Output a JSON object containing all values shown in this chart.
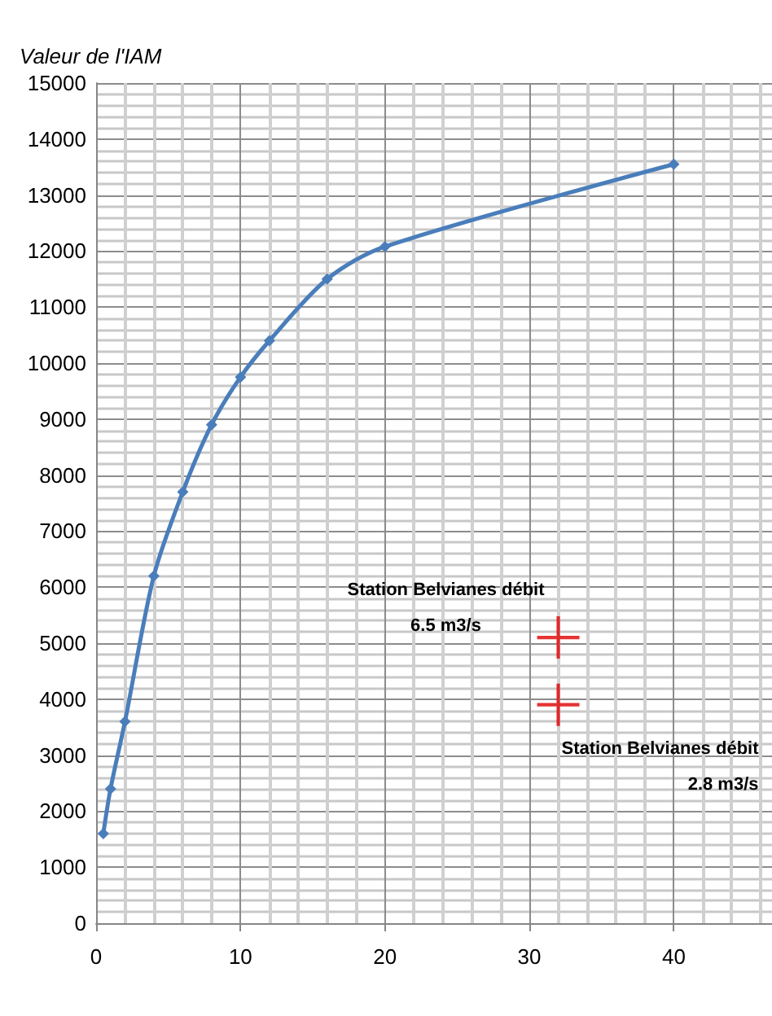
{
  "chart_data": {
    "type": "line",
    "ylabel": "Valeur de l'IAM",
    "series": [
      {
        "x": [
          0.5,
          1,
          2,
          4,
          6,
          8,
          10,
          12,
          16,
          20,
          40
        ],
        "values": [
          1600,
          2400,
          3600,
          6200,
          7700,
          8900,
          9750,
          10400,
          11500,
          12080,
          13550
        ],
        "color": "#4a7ebb",
        "marker": "diamond"
      },
      {
        "type": "scatter",
        "x": [
          32,
          32
        ],
        "values": [
          5100,
          3900
        ],
        "color": "#e00000",
        "marker": "cross"
      }
    ],
    "annotations": [
      {
        "text": "Station Belvianes débit\n6.5 m3/s",
        "x": 32,
        "y": 5100
      },
      {
        "text": "Station Belvianes débit\n2.8 m3/s",
        "x": 32,
        "y": 3900
      }
    ],
    "xlim": [
      0,
      46.8
    ],
    "xticks": [
      0,
      10,
      20,
      30,
      40
    ],
    "ylim": [
      0,
      15000
    ],
    "yticks": [
      0,
      1000,
      2000,
      3000,
      4000,
      5000,
      6000,
      7000,
      8000,
      9000,
      10000,
      11000,
      12000,
      13000,
      14000,
      15000
    ],
    "grid": true
  }
}
